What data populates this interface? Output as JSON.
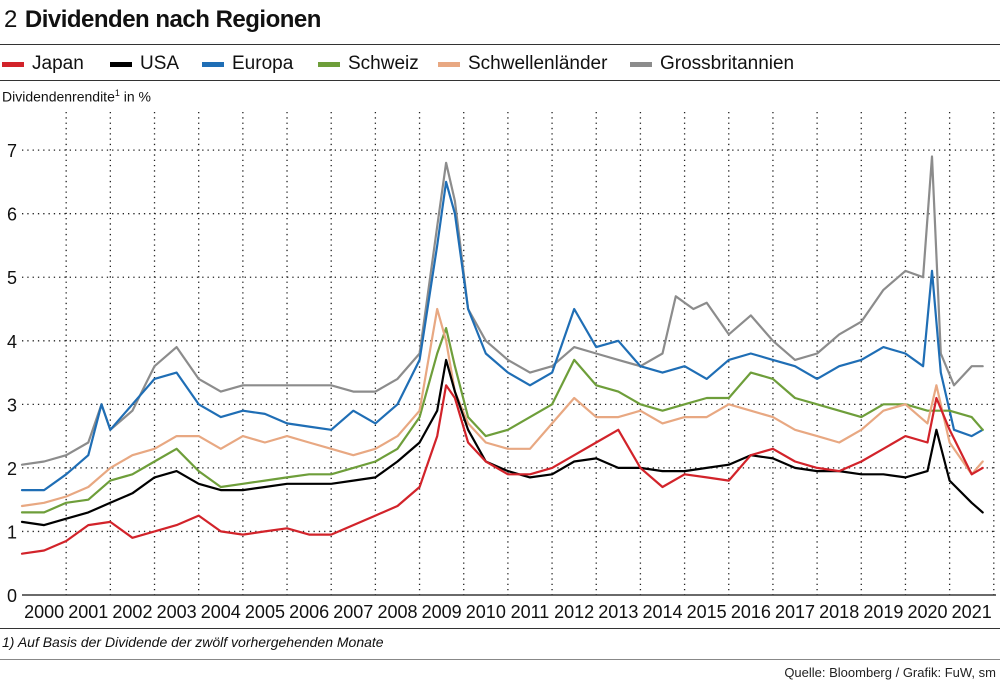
{
  "figure": {
    "number": "2",
    "title": "Dividenden nach Regionen",
    "footnote": "1) Auf Basis der Dividende der zwölf vorhergehenden Monate",
    "source": "Quelle: Bloomberg / Grafik: FuW, sm"
  },
  "legend": [
    {
      "name": "Japan",
      "color": "#d2232a"
    },
    {
      "name": "USA",
      "color": "#000000"
    },
    {
      "name": "Europa",
      "color": "#1f6eb5"
    },
    {
      "name": "Schweiz",
      "color": "#6e9e3a"
    },
    {
      "name": "Schwellenländer",
      "color": "#e8a882"
    },
    {
      "name": "Grossbritannien",
      "color": "#8c8c8c"
    }
  ],
  "chart_data": {
    "type": "line",
    "title": "Dividenden nach Regionen",
    "ylabel": "Dividendenrendite",
    "ylabel_sup": "1",
    "ylabel_unit": " in %",
    "xlabel": "",
    "ylim": [
      0,
      7.6
    ],
    "xlim": [
      1999.5,
      2021.55
    ],
    "yticks": [
      0,
      1,
      2,
      3,
      4,
      5,
      6,
      7
    ],
    "xticks": [
      "2000",
      "2001",
      "2002",
      "2003",
      "2004",
      "2005",
      "2006",
      "2007",
      "2008",
      "2009",
      "2010",
      "2011",
      "2012",
      "2013",
      "2014",
      "2015",
      "2016",
      "2017",
      "2018",
      "2019",
      "2020",
      "2021"
    ],
    "grid": true,
    "series": [
      {
        "name": "Japan",
        "color": "#d2232a",
        "x": [
          1999.5,
          2000.0,
          2000.5,
          2001.0,
          2001.5,
          2002.0,
          2002.5,
          2003.0,
          2003.5,
          2004.0,
          2004.5,
          2005.0,
          2005.5,
          2006.0,
          2006.5,
          2007.0,
          2007.5,
          2008.0,
          2008.5,
          2008.9,
          2009.1,
          2009.3,
          2009.6,
          2010.0,
          2010.5,
          2011.0,
          2011.5,
          2012.0,
          2012.5,
          2013.0,
          2013.5,
          2014.0,
          2014.5,
          2015.0,
          2015.5,
          2016.0,
          2016.5,
          2017.0,
          2017.5,
          2018.0,
          2018.5,
          2019.0,
          2019.5,
          2020.0,
          2020.2,
          2020.5,
          2021.0,
          2021.25
        ],
        "y": [
          0.65,
          0.7,
          0.85,
          1.1,
          1.15,
          0.9,
          1.0,
          1.1,
          1.25,
          1.0,
          0.95,
          1.0,
          1.05,
          0.95,
          0.95,
          1.1,
          1.25,
          1.4,
          1.7,
          2.5,
          3.3,
          3.1,
          2.4,
          2.1,
          1.9,
          1.9,
          2.0,
          2.2,
          2.4,
          2.6,
          2.0,
          1.7,
          1.9,
          1.85,
          1.8,
          2.2,
          2.3,
          2.1,
          2.0,
          1.95,
          2.1,
          2.3,
          2.5,
          2.4,
          3.1,
          2.6,
          1.9,
          2.0
        ]
      },
      {
        "name": "USA",
        "color": "#000000",
        "x": [
          1999.5,
          2000.0,
          2000.5,
          2001.0,
          2001.5,
          2002.0,
          2002.5,
          2003.0,
          2003.5,
          2004.0,
          2004.5,
          2005.0,
          2005.5,
          2006.0,
          2006.5,
          2007.0,
          2007.5,
          2008.0,
          2008.5,
          2008.9,
          2009.1,
          2009.3,
          2009.6,
          2010.0,
          2010.5,
          2011.0,
          2011.5,
          2012.0,
          2012.5,
          2013.0,
          2013.5,
          2014.0,
          2014.5,
          2015.0,
          2015.5,
          2016.0,
          2016.5,
          2017.0,
          2017.5,
          2018.0,
          2018.5,
          2019.0,
          2019.5,
          2020.0,
          2020.2,
          2020.5,
          2021.0,
          2021.25
        ],
        "y": [
          1.15,
          1.1,
          1.2,
          1.3,
          1.45,
          1.6,
          1.85,
          1.95,
          1.75,
          1.65,
          1.65,
          1.7,
          1.75,
          1.75,
          1.75,
          1.8,
          1.85,
          2.1,
          2.4,
          2.9,
          3.7,
          3.2,
          2.6,
          2.1,
          1.95,
          1.85,
          1.9,
          2.1,
          2.15,
          2.0,
          2.0,
          1.95,
          1.95,
          2.0,
          2.05,
          2.2,
          2.15,
          2.0,
          1.95,
          1.95,
          1.9,
          1.9,
          1.85,
          1.95,
          2.6,
          1.8,
          1.45,
          1.3
        ]
      },
      {
        "name": "Europa",
        "color": "#1f6eb5",
        "x": [
          1999.5,
          2000.0,
          2000.5,
          2001.0,
          2001.3,
          2001.5,
          2002.0,
          2002.5,
          2003.0,
          2003.5,
          2004.0,
          2004.5,
          2005.0,
          2005.5,
          2006.0,
          2006.5,
          2007.0,
          2007.5,
          2008.0,
          2008.5,
          2008.9,
          2009.1,
          2009.3,
          2009.6,
          2010.0,
          2010.5,
          2011.0,
          2011.5,
          2012.0,
          2012.5,
          2013.0,
          2013.5,
          2014.0,
          2014.5,
          2015.0,
          2015.5,
          2016.0,
          2016.5,
          2017.0,
          2017.5,
          2018.0,
          2018.5,
          2019.0,
          2019.5,
          2019.9,
          2020.1,
          2020.3,
          2020.6,
          2021.0,
          2021.25
        ],
        "y": [
          1.65,
          1.65,
          1.9,
          2.2,
          3.0,
          2.6,
          3.0,
          3.4,
          3.5,
          3.0,
          2.8,
          2.9,
          2.85,
          2.7,
          2.65,
          2.6,
          2.9,
          2.7,
          3.0,
          3.7,
          5.5,
          6.5,
          6.0,
          4.5,
          3.8,
          3.5,
          3.3,
          3.5,
          4.5,
          3.9,
          4.0,
          3.6,
          3.5,
          3.6,
          3.4,
          3.7,
          3.8,
          3.7,
          3.6,
          3.4,
          3.6,
          3.7,
          3.9,
          3.8,
          3.6,
          5.1,
          3.5,
          2.6,
          2.5,
          2.6
        ]
      },
      {
        "name": "Schweiz",
        "color": "#6e9e3a",
        "x": [
          1999.5,
          2000.0,
          2000.5,
          2001.0,
          2001.5,
          2002.0,
          2002.5,
          2003.0,
          2003.5,
          2004.0,
          2004.5,
          2005.0,
          2005.5,
          2006.0,
          2006.5,
          2007.0,
          2007.5,
          2008.0,
          2008.5,
          2008.9,
          2009.1,
          2009.3,
          2009.6,
          2010.0,
          2010.5,
          2011.0,
          2011.5,
          2012.0,
          2012.5,
          2013.0,
          2013.5,
          2014.0,
          2014.5,
          2015.0,
          2015.5,
          2016.0,
          2016.5,
          2017.0,
          2017.5,
          2018.0,
          2018.5,
          2019.0,
          2019.5,
          2020.0,
          2020.2,
          2020.5,
          2021.0,
          2021.25
        ],
        "y": [
          1.3,
          1.3,
          1.45,
          1.5,
          1.8,
          1.9,
          2.1,
          2.3,
          1.95,
          1.7,
          1.75,
          1.8,
          1.85,
          1.9,
          1.9,
          2.0,
          2.1,
          2.3,
          2.8,
          3.8,
          4.2,
          3.6,
          2.8,
          2.5,
          2.6,
          2.8,
          3.0,
          3.7,
          3.3,
          3.2,
          3.0,
          2.9,
          3.0,
          3.1,
          3.1,
          3.5,
          3.4,
          3.1,
          3.0,
          2.9,
          2.8,
          3.0,
          3.0,
          2.9,
          2.9,
          2.9,
          2.8,
          2.6
        ]
      },
      {
        "name": "Schwellenländer",
        "color": "#e8a882",
        "x": [
          1999.5,
          2000.0,
          2000.5,
          2001.0,
          2001.5,
          2002.0,
          2002.5,
          2003.0,
          2003.5,
          2004.0,
          2004.5,
          2005.0,
          2005.5,
          2006.0,
          2006.5,
          2007.0,
          2007.5,
          2008.0,
          2008.5,
          2008.9,
          2009.1,
          2009.3,
          2009.6,
          2010.0,
          2010.5,
          2011.0,
          2011.5,
          2012.0,
          2012.5,
          2013.0,
          2013.5,
          2014.0,
          2014.5,
          2015.0,
          2015.5,
          2016.0,
          2016.5,
          2017.0,
          2017.5,
          2018.0,
          2018.5,
          2019.0,
          2019.5,
          2020.0,
          2020.2,
          2020.5,
          2021.0,
          2021.25
        ],
        "y": [
          1.4,
          1.45,
          1.55,
          1.7,
          2.0,
          2.2,
          2.3,
          2.5,
          2.5,
          2.3,
          2.5,
          2.4,
          2.5,
          2.4,
          2.3,
          2.2,
          2.3,
          2.5,
          2.9,
          4.5,
          4.0,
          3.2,
          2.7,
          2.4,
          2.3,
          2.3,
          2.7,
          3.1,
          2.8,
          2.8,
          2.9,
          2.7,
          2.8,
          2.8,
          3.0,
          2.9,
          2.8,
          2.6,
          2.5,
          2.4,
          2.6,
          2.9,
          3.0,
          2.7,
          3.3,
          2.4,
          1.9,
          2.1
        ]
      },
      {
        "name": "Grossbritannien",
        "color": "#8c8c8c",
        "x": [
          1999.5,
          2000.0,
          2000.5,
          2001.0,
          2001.3,
          2001.5,
          2002.0,
          2002.5,
          2003.0,
          2003.5,
          2004.0,
          2004.5,
          2005.0,
          2005.5,
          2006.0,
          2006.5,
          2007.0,
          2007.5,
          2008.0,
          2008.5,
          2008.9,
          2009.1,
          2009.3,
          2009.6,
          2010.0,
          2010.5,
          2011.0,
          2011.5,
          2012.0,
          2012.5,
          2013.0,
          2013.5,
          2014.0,
          2014.3,
          2014.7,
          2015.0,
          2015.5,
          2016.0,
          2016.5,
          2017.0,
          2017.5,
          2018.0,
          2018.5,
          2019.0,
          2019.5,
          2019.9,
          2020.1,
          2020.3,
          2020.6,
          2021.0,
          2021.25
        ],
        "y": [
          2.05,
          2.1,
          2.2,
          2.4,
          3.0,
          2.6,
          2.9,
          3.6,
          3.9,
          3.4,
          3.2,
          3.3,
          3.3,
          3.3,
          3.3,
          3.3,
          3.2,
          3.2,
          3.4,
          3.8,
          5.8,
          6.8,
          6.2,
          4.5,
          4.0,
          3.7,
          3.5,
          3.6,
          3.9,
          3.8,
          3.7,
          3.6,
          3.8,
          4.7,
          4.5,
          4.6,
          4.1,
          4.4,
          4.0,
          3.7,
          3.8,
          4.1,
          4.3,
          4.8,
          5.1,
          5.0,
          6.9,
          3.8,
          3.3,
          3.6,
          3.6
        ]
      }
    ]
  }
}
